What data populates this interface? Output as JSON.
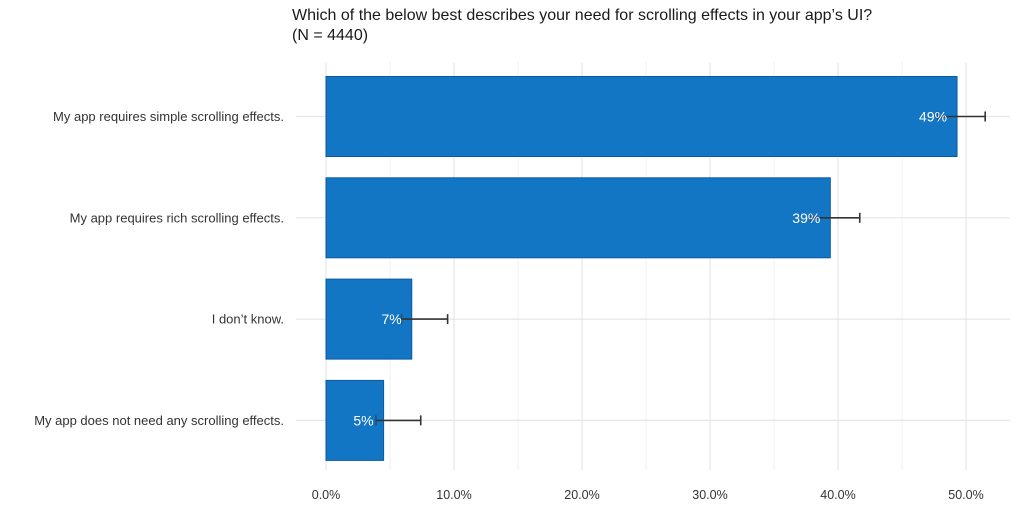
{
  "chart_data": {
    "type": "bar",
    "orientation": "horizontal",
    "title": "Which of the below best describes your need for scrolling effects in your app’s UI?",
    "subtitle": "(N = 4440)",
    "categories": [
      "My app requires simple scrolling effects.",
      "My app requires rich scrolling effects.",
      "I don’t know.",
      "My app does not need any scrolling effects."
    ],
    "values": [
      49.3,
      39.4,
      6.7,
      4.5
    ],
    "data_labels": [
      "49%",
      "39%",
      "7%",
      "5%"
    ],
    "error_low": [
      47.8,
      37.9,
      5.9,
      3.9
    ],
    "error_high": [
      51.5,
      41.7,
      9.5,
      7.4
    ],
    "xlim": [
      0,
      51.5
    ],
    "x_ticks": [
      0,
      10,
      20,
      30,
      40,
      50
    ],
    "x_tick_labels": [
      "0.0%",
      "10.0%",
      "20.0%",
      "30.0%",
      "40.0%",
      "50.0%"
    ],
    "xlabel": "",
    "ylabel": "",
    "grid": true,
    "legend": "none",
    "bar_color": "#1376c5",
    "bar_edge_color": "#0d5aa0",
    "errorbar_color": "#333333",
    "grid_color": "#e6e6e6"
  }
}
